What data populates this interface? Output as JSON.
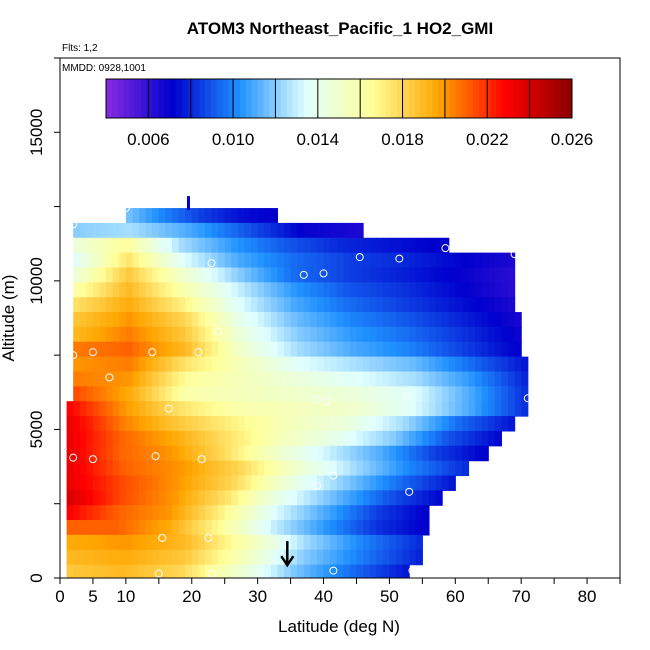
{
  "chart_data": {
    "type": "heatmap",
    "title": "ATOM3 Northeast_Pacific_1 HO2_GMI",
    "flights_label": "Flts: 1,2",
    "dates_label": "MMDD: 0928,1001",
    "xlabel": "Latitude (deg N)",
    "ylabel": "Altitude (m)",
    "xlim": [
      0,
      85
    ],
    "ylim": [
      0,
      17500
    ],
    "x_ticks": [
      0,
      5,
      10,
      20,
      30,
      40,
      50,
      60,
      70,
      80
    ],
    "y_ticks": [
      0,
      5000,
      10000,
      15000
    ],
    "grid": false,
    "colorbar": {
      "min": 0.004,
      "max": 0.026,
      "ticks": [
        "0.006",
        "0.010",
        "0.014",
        "0.018",
        "0.022",
        "0.026"
      ],
      "tick_values": [
        0.006,
        0.01,
        0.014,
        0.018,
        0.022,
        0.026
      ],
      "colors": [
        "#8a2be2",
        "#0000cd",
        "#1e90ff",
        "#e0ffff",
        "#ffff99",
        "#ffa500",
        "#ff0000",
        "#8b0000"
      ]
    },
    "rows": [
      {
        "alt": 12200,
        "lat_start": 10,
        "lat_end": 33,
        "values": [
          0.0118,
          0.01,
          0.0085,
          0.0075,
          0.007
        ]
      },
      {
        "alt": 11700,
        "lat_start": 2,
        "lat_end": 46,
        "values": [
          0.012,
          0.0125,
          0.011,
          0.009,
          0.007,
          0.0065
        ]
      },
      {
        "alt": 11200,
        "lat_start": 2,
        "lat_end": 59,
        "values": [
          0.0145,
          0.0165,
          0.0125,
          0.0105,
          0.009,
          0.008,
          0.0075,
          0.007
        ]
      },
      {
        "alt": 10700,
        "lat_start": 2,
        "lat_end": 69,
        "values": [
          0.0135,
          0.0175,
          0.0135,
          0.011,
          0.0095,
          0.0085,
          0.008,
          0.0072,
          0.0065
        ]
      },
      {
        "alt": 10200,
        "lat_start": 2,
        "lat_end": 69,
        "values": [
          0.0145,
          0.0185,
          0.015,
          0.012,
          0.0095,
          0.0085,
          0.0078,
          0.007,
          0.0062
        ]
      },
      {
        "alt": 9700,
        "lat_start": 2,
        "lat_end": 69,
        "values": [
          0.016,
          0.019,
          0.016,
          0.013,
          0.0105,
          0.009,
          0.0082,
          0.0072,
          0.0062
        ]
      },
      {
        "alt": 9200,
        "lat_start": 2,
        "lat_end": 69,
        "values": [
          0.0175,
          0.0195,
          0.017,
          0.0135,
          0.011,
          0.0095,
          0.0085,
          0.0075,
          0.0065
        ]
      },
      {
        "alt": 8700,
        "lat_start": 2,
        "lat_end": 70,
        "values": [
          0.0185,
          0.02,
          0.018,
          0.014,
          0.0115,
          0.01,
          0.009,
          0.0078,
          0.0066
        ]
      },
      {
        "alt": 8200,
        "lat_start": 2,
        "lat_end": 70,
        "values": [
          0.019,
          0.0205,
          0.0185,
          0.0145,
          0.012,
          0.0105,
          0.0095,
          0.0082,
          0.0068
        ]
      },
      {
        "alt": 7700,
        "lat_start": 2,
        "lat_end": 70,
        "values": [
          0.0205,
          0.021,
          0.019,
          0.015,
          0.0125,
          0.011,
          0.01,
          0.0085,
          0.007
        ]
      },
      {
        "alt": 7200,
        "lat_start": 2,
        "lat_end": 71,
        "values": [
          0.02,
          0.0205,
          0.0175,
          0.0155,
          0.0135,
          0.0125,
          0.0115,
          0.0095,
          0.0075
        ]
      },
      {
        "alt": 6700,
        "lat_start": 2,
        "lat_end": 71,
        "values": [
          0.0205,
          0.02,
          0.0165,
          0.0155,
          0.0145,
          0.0135,
          0.0125,
          0.0105,
          0.0078
        ]
      },
      {
        "alt": 6200,
        "lat_start": 2,
        "lat_end": 71,
        "values": [
          0.0215,
          0.0195,
          0.016,
          0.0155,
          0.015,
          0.0145,
          0.0135,
          0.011,
          0.008
        ]
      },
      {
        "alt": 5700,
        "lat_start": 1,
        "lat_end": 71,
        "values": [
          0.023,
          0.02,
          0.0175,
          0.016,
          0.0155,
          0.015,
          0.0135,
          0.011,
          0.008
        ]
      },
      {
        "alt": 5200,
        "lat_start": 1,
        "lat_end": 69,
        "values": [
          0.0235,
          0.0205,
          0.0185,
          0.017,
          0.0155,
          0.0145,
          0.0125,
          0.0095,
          0.0075
        ]
      },
      {
        "alt": 4700,
        "lat_start": 1,
        "lat_end": 67,
        "values": [
          0.0235,
          0.021,
          0.0195,
          0.0175,
          0.0155,
          0.014,
          0.012,
          0.009,
          0.0072
        ]
      },
      {
        "alt": 4200,
        "lat_start": 1,
        "lat_end": 65,
        "values": [
          0.0235,
          0.021,
          0.02,
          0.0178,
          0.015,
          0.013,
          0.011,
          0.0085,
          0.007
        ]
      },
      {
        "alt": 3700,
        "lat_start": 1,
        "lat_end": 62,
        "values": [
          0.0235,
          0.021,
          0.02,
          0.018,
          0.015,
          0.0125,
          0.01,
          0.008
        ]
      },
      {
        "alt": 3200,
        "lat_start": 1,
        "lat_end": 60,
        "values": [
          0.0235,
          0.0215,
          0.02,
          0.018,
          0.0145,
          0.012,
          0.0095,
          0.0075
        ]
      },
      {
        "alt": 2700,
        "lat_start": 1,
        "lat_end": 58,
        "values": [
          0.024,
          0.0215,
          0.02,
          0.0175,
          0.014,
          0.0115,
          0.009,
          0.0072
        ]
      },
      {
        "alt": 2200,
        "lat_start": 1,
        "lat_end": 56,
        "values": [
          0.023,
          0.021,
          0.02,
          0.017,
          0.0135,
          0.011,
          0.0085,
          0.007
        ]
      },
      {
        "alt": 1700,
        "lat_start": 1,
        "lat_end": 56,
        "values": [
          0.021,
          0.021,
          0.0195,
          0.0165,
          0.013,
          0.0105,
          0.0082,
          0.007
        ]
      },
      {
        "alt": 1200,
        "lat_start": 1,
        "lat_end": 55,
        "values": [
          0.0195,
          0.02,
          0.019,
          0.016,
          0.0125,
          0.01,
          0.008
        ]
      },
      {
        "alt": 700,
        "lat_start": 1,
        "lat_end": 55,
        "values": [
          0.019,
          0.0195,
          0.0185,
          0.0155,
          0.012,
          0.0098,
          0.0078
        ]
      },
      {
        "alt": 200,
        "lat_start": 1,
        "lat_end": 53,
        "values": [
          0.0185,
          0.019,
          0.018,
          0.015,
          0.0118,
          0.0095,
          0.0075
        ]
      }
    ],
    "points": [
      [
        10,
        12450
      ],
      [
        2,
        11900
      ],
      [
        58.5,
        11100
      ],
      [
        69,
        10900
      ],
      [
        45.5,
        10800
      ],
      [
        51.5,
        10750
      ],
      [
        23,
        10600
      ],
      [
        37,
        10200
      ],
      [
        40,
        10250
      ],
      [
        24,
        8300
      ],
      [
        2,
        7500
      ],
      [
        5,
        7600
      ],
      [
        14,
        7600
      ],
      [
        21,
        7600
      ],
      [
        7.5,
        6750
      ],
      [
        16.5,
        5700
      ],
      [
        39,
        6000
      ],
      [
        40.5,
        5950
      ],
      [
        52.5,
        6100
      ],
      [
        71,
        6050
      ],
      [
        2,
        4050
      ],
      [
        5,
        4000
      ],
      [
        14.5,
        4100
      ],
      [
        21.5,
        4000
      ],
      [
        41.5,
        3450
      ],
      [
        39,
        3100
      ],
      [
        53,
        2900
      ],
      [
        15.5,
        1350
      ],
      [
        22.5,
        1350
      ],
      [
        41.5,
        250
      ],
      [
        15,
        150
      ],
      [
        23,
        150
      ],
      [
        53.5,
        250
      ],
      [
        0,
        5800
      ]
    ],
    "markers": [
      {
        "lat": 19.5,
        "alt": 12650,
        "direction": "up"
      },
      {
        "lat": 34.5,
        "alt": 500,
        "direction": "down"
      }
    ]
  }
}
